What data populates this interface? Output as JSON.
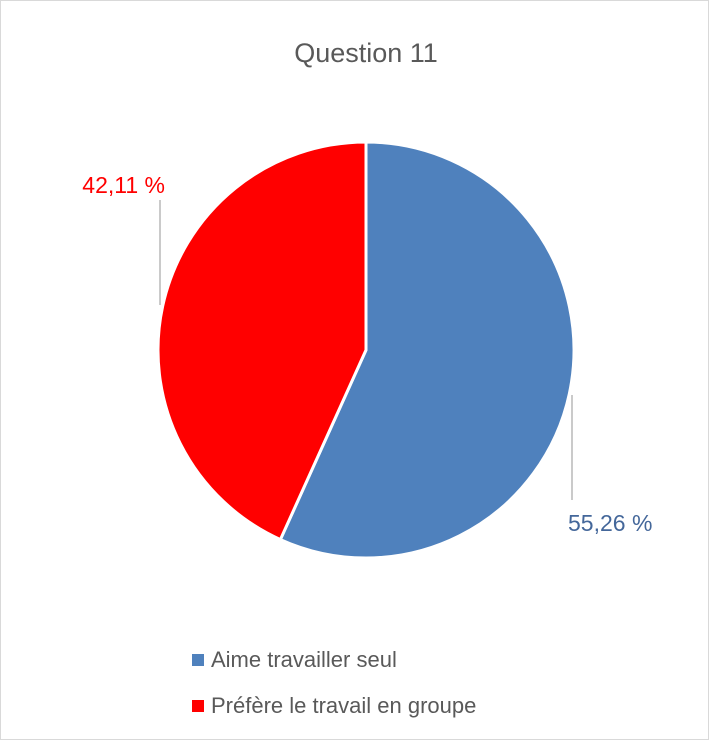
{
  "chart_data": {
    "type": "pie",
    "title": "Question 11",
    "categories": [
      "Aime travailler seul",
      "Préfère le travail en groupe"
    ],
    "values": [
      55.26,
      42.11
    ],
    "value_labels": [
      "55,26 %",
      "42,11 %"
    ],
    "colors": [
      "#4f81bd",
      "#ff0000"
    ],
    "legend": "bottom"
  }
}
